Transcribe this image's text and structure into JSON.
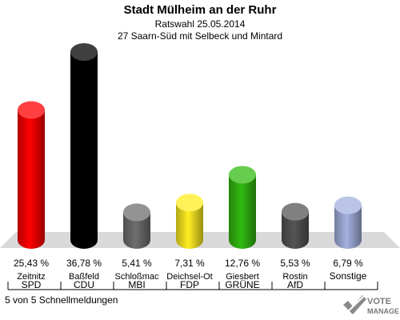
{
  "header": {
    "title": "Stadt Mülheim an der Ruhr",
    "subtitle1": "Ratswahl 25.05.2014",
    "subtitle2": "27 Saarn-Süd mit Selbeck und Mintard"
  },
  "footer": {
    "text": "5 von 5 Schnellmeldungen"
  },
  "logo": {
    "line1": "VOTE",
    "line2": "MANAGER"
  },
  "chart_data": {
    "type": "bar",
    "title": "Stadt Mülheim an der Ruhr",
    "categories": [
      "SPD",
      "CDU",
      "MBI",
      "FDP",
      "GRÜNE",
      "AfD",
      "Sonstige"
    ],
    "candidates": [
      "Zeitnitz",
      "Baßfeld",
      "Schloßmac",
      "Deichsel-Ot",
      "Giesbert",
      "Rostin",
      ""
    ],
    "values": [
      25.43,
      36.78,
      5.41,
      7.31,
      12.76,
      5.53,
      6.79
    ],
    "value_labels": [
      "25,43 %",
      "36,78 %",
      "5,41 %",
      "7,31 %",
      "12,76 %",
      "5,53 %",
      "6,79 %"
    ],
    "colors": [
      "#ff0000",
      "#000000",
      "#6f6f6f",
      "#ffee22",
      "#33bb11",
      "#555555",
      "#a4b2e0"
    ],
    "ylim": [
      0,
      36.78
    ],
    "grid": false,
    "legend": "none"
  }
}
